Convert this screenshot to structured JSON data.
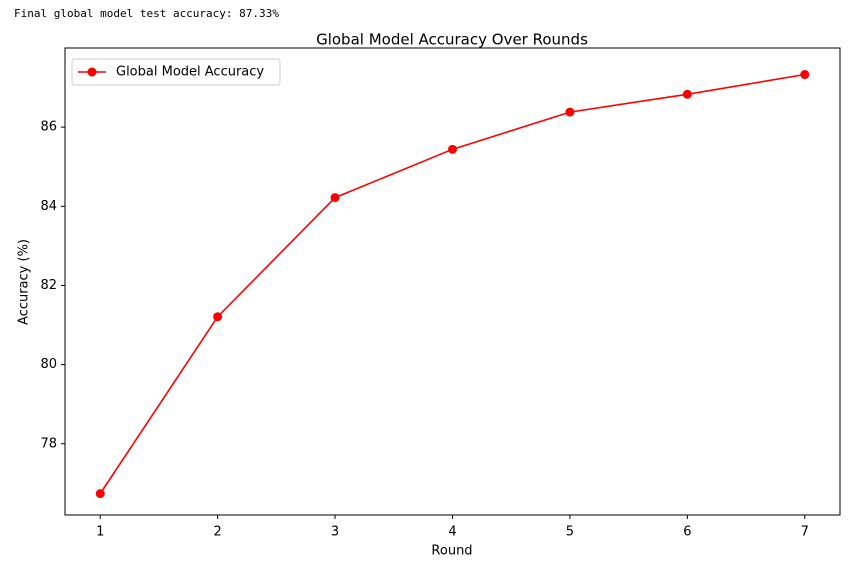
{
  "output_text": "Final global model test accuracy: 87.33%",
  "chart_data": {
    "type": "line",
    "title": "Global Model Accuracy Over Rounds",
    "x_label": "Round",
    "y_label": "Accuracy (%)",
    "x": [
      1,
      2,
      3,
      4,
      5,
      6,
      7
    ],
    "series": [
      {
        "name": "Global Model Accuracy",
        "color": "#ff0000",
        "values": [
          76.74,
          81.21,
          84.22,
          85.44,
          86.38,
          86.83,
          87.33
        ]
      }
    ],
    "xlim": [
      0.7,
      7.3
    ],
    "xticks": [
      1,
      2,
      3,
      4,
      5,
      6,
      7
    ],
    "ylim": [
      76.2,
      88.0
    ],
    "yticks": [
      78,
      80,
      82,
      84,
      86
    ],
    "grid": false,
    "legend": "upper-left"
  }
}
